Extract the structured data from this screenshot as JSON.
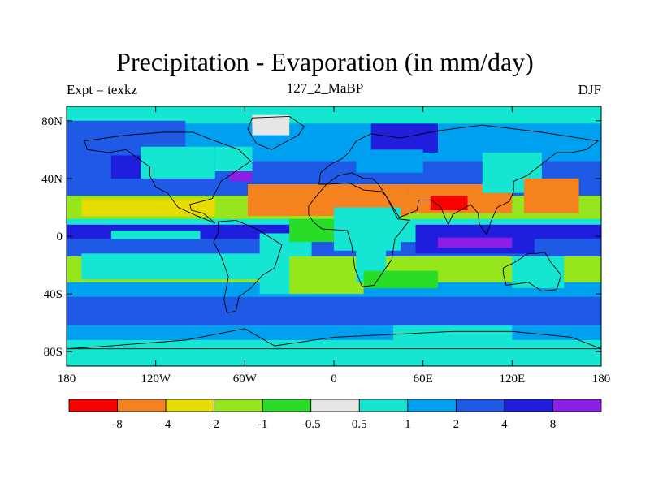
{
  "chart_data": {
    "type": "heatmap",
    "title": "Precipitation - Evaporation (in mm/day)",
    "subtitle_left": "Expt = texkz",
    "subtitle_center": "127_2_MaBP",
    "subtitle_right": "DJF",
    "x_range": [
      -180,
      180
    ],
    "y_range": [
      -90,
      90
    ],
    "x_ticks": [
      {
        "value": -180,
        "label": "180"
      },
      {
        "value": -120,
        "label": "120W"
      },
      {
        "value": -60,
        "label": "60W"
      },
      {
        "value": 0,
        "label": "0"
      },
      {
        "value": 60,
        "label": "60E"
      },
      {
        "value": 120,
        "label": "120E"
      },
      {
        "value": 180,
        "label": "180"
      }
    ],
    "y_ticks": [
      {
        "value": 80,
        "label": "80N"
      },
      {
        "value": 40,
        "label": "40N"
      },
      {
        "value": 0,
        "label": "0"
      },
      {
        "value": -40,
        "label": "40S"
      },
      {
        "value": -80,
        "label": "80S"
      }
    ],
    "colorbar": {
      "colors": [
        "#fa0000",
        "#f5821e",
        "#e6dc00",
        "#96e61e",
        "#28dc28",
        "#e6e6e6",
        "#14e6d2",
        "#00a0f0",
        "#1e5ae6",
        "#1e1edc",
        "#8c1ee6"
      ],
      "levels": [
        "-8",
        "-4",
        "-2",
        "-1",
        "-0.5",
        "0.5",
        "1",
        "2",
        "4",
        "8"
      ]
    },
    "regions": [
      {
        "class": 6,
        "lon": [
          -180,
          180
        ],
        "lat": [
          -90,
          90
        ]
      },
      {
        "class": 7,
        "lon": [
          -180,
          180
        ],
        "lat": [
          50,
          78
        ]
      },
      {
        "class": 8,
        "lon": [
          -180,
          180
        ],
        "lat": [
          28,
          52
        ]
      },
      {
        "class": 3,
        "lon": [
          -180,
          180
        ],
        "lat": [
          12,
          28
        ]
      },
      {
        "class": 2,
        "lon": [
          -170,
          -80
        ],
        "lat": [
          14,
          26
        ]
      },
      {
        "class": 9,
        "lon": [
          -180,
          180
        ],
        "lat": [
          -2,
          8
        ]
      },
      {
        "class": 6,
        "lon": [
          -150,
          -90
        ],
        "lat": [
          -2,
          4
        ]
      },
      {
        "class": 8,
        "lon": [
          -180,
          180
        ],
        "lat": [
          -14,
          -2
        ]
      },
      {
        "class": 3,
        "lon": [
          -180,
          180
        ],
        "lat": [
          -32,
          -14
        ]
      },
      {
        "class": 7,
        "lon": [
          -180,
          180
        ],
        "lat": [
          -42,
          -32
        ]
      },
      {
        "class": 8,
        "lon": [
          -180,
          180
        ],
        "lat": [
          -62,
          -42
        ]
      },
      {
        "class": 7,
        "lon": [
          -180,
          180
        ],
        "lat": [
          -72,
          -62
        ]
      },
      {
        "class": 8,
        "lon": [
          -180,
          -100
        ],
        "lat": [
          50,
          80
        ]
      },
      {
        "class": 9,
        "lon": [
          -150,
          -120
        ],
        "lat": [
          40,
          56
        ]
      },
      {
        "class": 10,
        "lon": [
          -70,
          -55
        ],
        "lat": [
          38,
          55
        ]
      },
      {
        "class": 5,
        "lon": [
          -55,
          -30
        ],
        "lat": [
          70,
          84
        ]
      },
      {
        "class": 6,
        "lon": [
          -130,
          -80
        ],
        "lat": [
          40,
          62
        ]
      },
      {
        "class": 6,
        "lon": [
          -80,
          -55
        ],
        "lat": [
          45,
          62
        ]
      },
      {
        "class": 1,
        "lon": [
          -58,
          50
        ],
        "lat": [
          14,
          36
        ]
      },
      {
        "class": 6,
        "lon": [
          -50,
          -15
        ],
        "lat": [
          -40,
          2
        ]
      },
      {
        "class": 4,
        "lon": [
          -30,
          10
        ],
        "lat": [
          -4,
          12
        ]
      },
      {
        "class": 6,
        "lon": [
          0,
          45
        ],
        "lat": [
          -10,
          20
        ]
      },
      {
        "class": 3,
        "lon": [
          -30,
          20
        ],
        "lat": [
          -40,
          -14
        ]
      },
      {
        "class": 6,
        "lon": [
          15,
          35
        ],
        "lat": [
          -32,
          -5
        ]
      },
      {
        "class": 9,
        "lon": [
          25,
          70
        ],
        "lat": [
          58,
          78
        ]
      },
      {
        "class": 7,
        "lon": [
          15,
          60
        ],
        "lat": [
          44,
          60
        ]
      },
      {
        "class": 1,
        "lon": [
          50,
          120
        ],
        "lat": [
          16,
          36
        ]
      },
      {
        "class": 0,
        "lon": [
          65,
          90
        ],
        "lat": [
          18,
          28
        ]
      },
      {
        "class": 6,
        "lon": [
          100,
          140
        ],
        "lat": [
          30,
          58
        ]
      },
      {
        "class": 1,
        "lon": [
          128,
          165
        ],
        "lat": [
          16,
          40
        ]
      },
      {
        "class": 9,
        "lon": [
          55,
          135
        ],
        "lat": [
          -12,
          2
        ]
      },
      {
        "class": 10,
        "lon": [
          70,
          120
        ],
        "lat": [
          -8,
          -1
        ]
      },
      {
        "class": 6,
        "lon": [
          40,
          55
        ],
        "lat": [
          -4,
          10
        ]
      },
      {
        "class": 6,
        "lon": [
          120,
          155
        ],
        "lat": [
          -36,
          -14
        ]
      },
      {
        "class": 4,
        "lon": [
          20,
          70
        ],
        "lat": [
          -36,
          -24
        ]
      },
      {
        "class": 6,
        "lon": [
          -170,
          -50
        ],
        "lat": [
          -30,
          -12
        ]
      },
      {
        "class": 6,
        "lon": [
          40,
          120
        ],
        "lat": [
          -84,
          -62
        ]
      },
      {
        "class": 6,
        "lon": [
          -65,
          -30
        ],
        "lat": [
          -90,
          -80
        ]
      }
    ]
  }
}
